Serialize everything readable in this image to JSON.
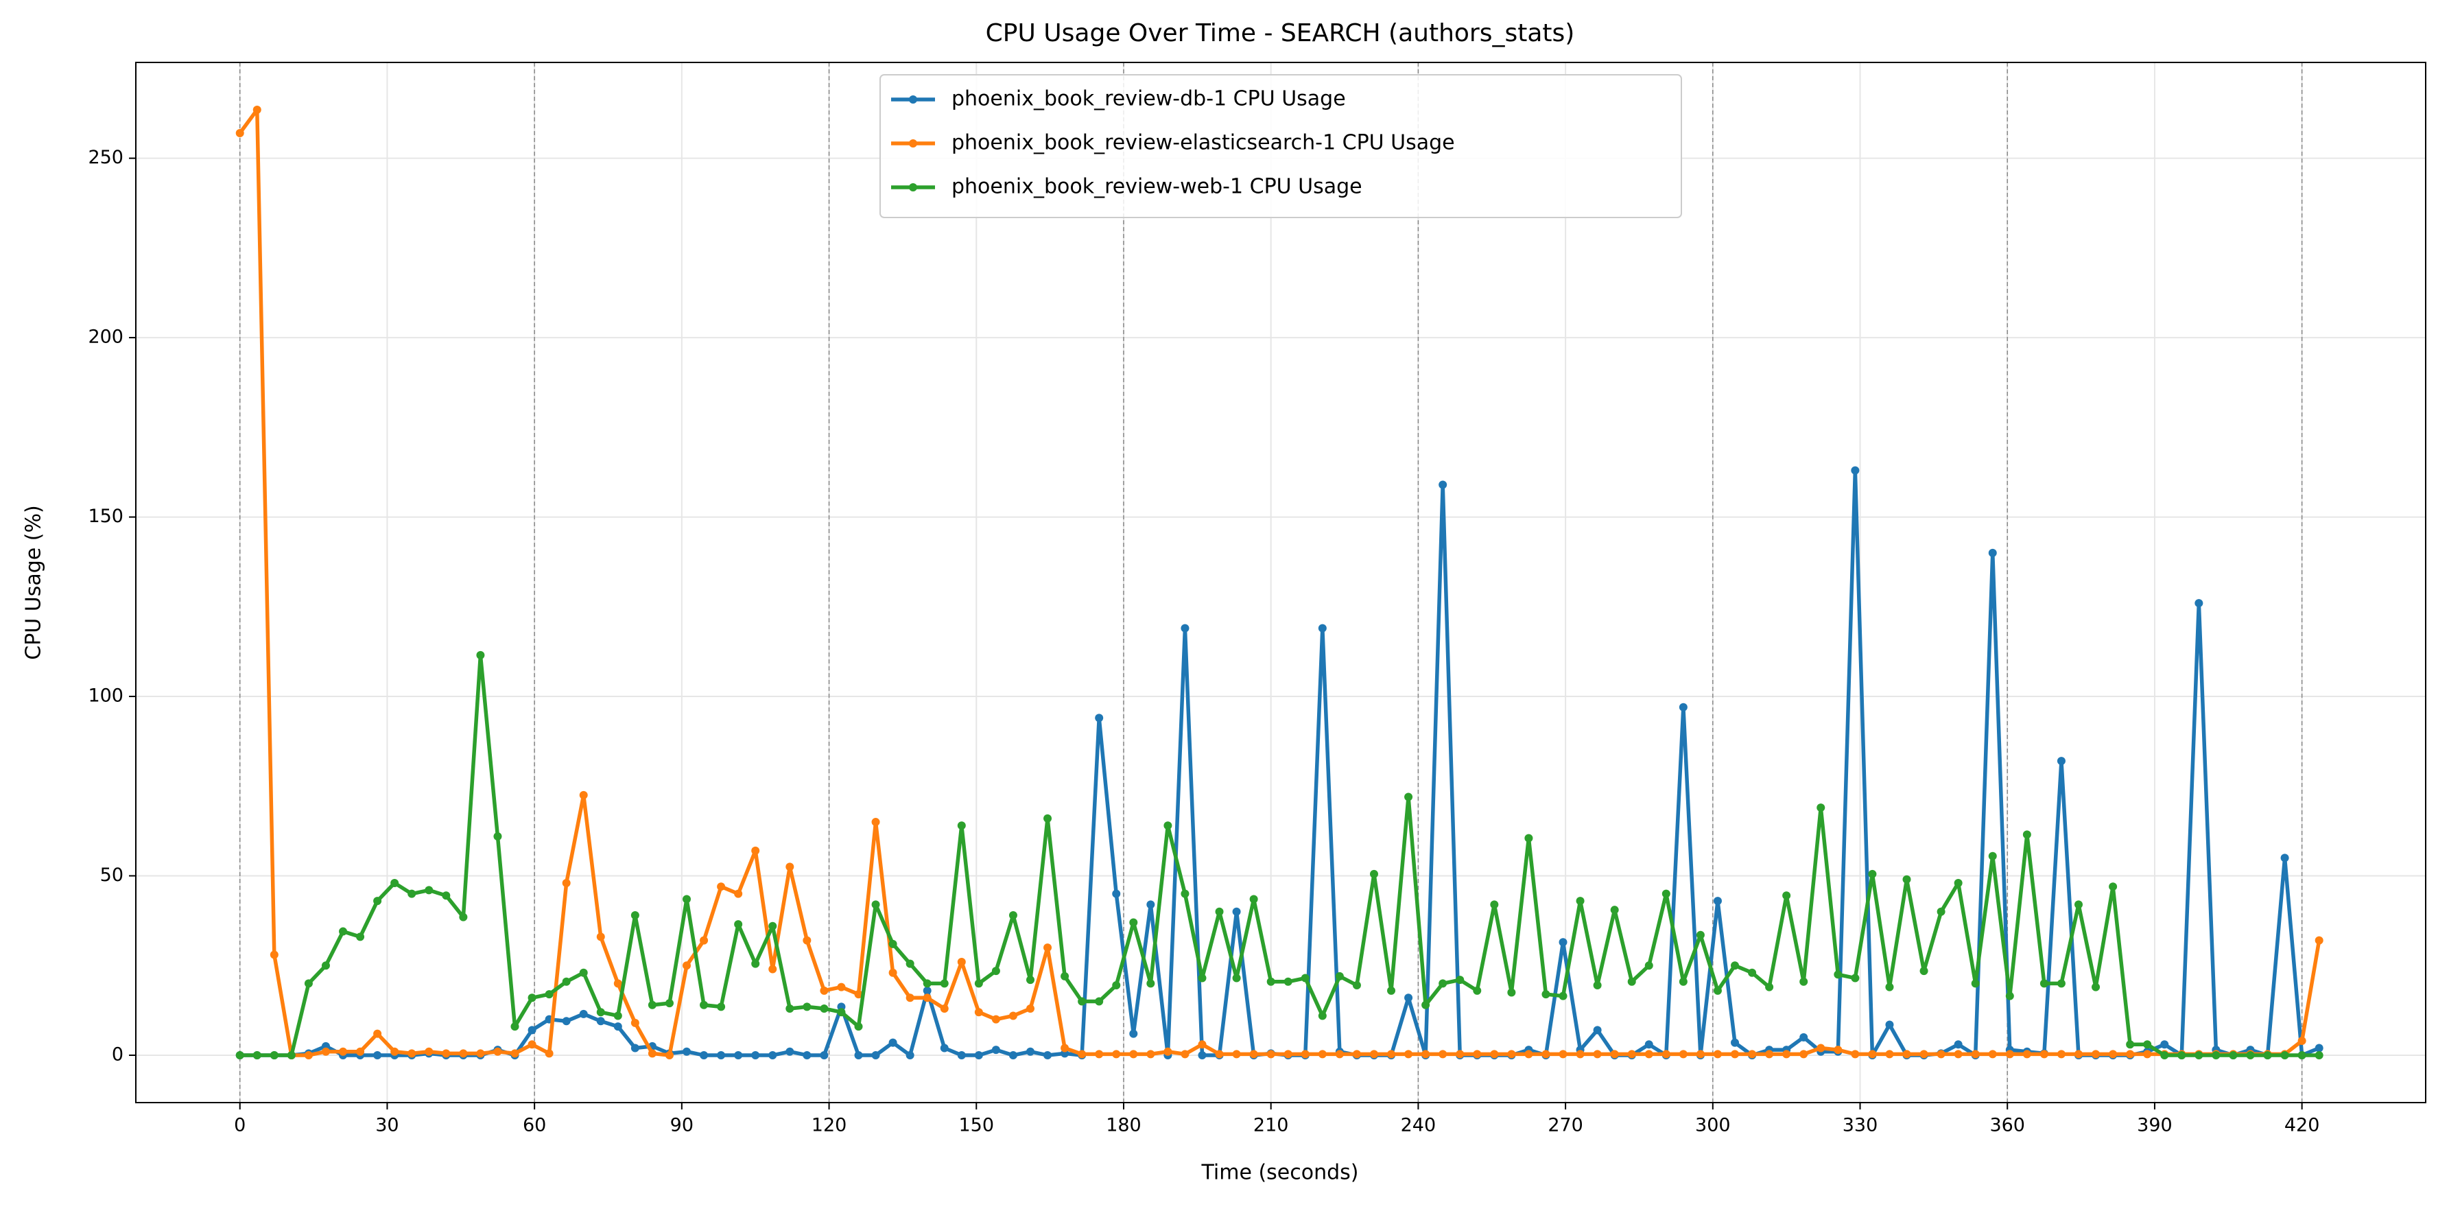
{
  "chart_data": {
    "type": "line",
    "title": "CPU Usage Over Time - SEARCH (authors_stats)",
    "x_label": "Time (seconds)",
    "y_label": "CPU Usage (%)",
    "x": [
      0,
      3.5,
      7,
      10.5,
      14,
      17.5,
      21,
      24.5,
      28,
      31.5,
      35,
      38.5,
      42,
      45.5,
      49,
      52.5,
      56,
      59.5,
      63,
      66.5,
      70,
      73.5,
      77,
      80.5,
      84,
      87.5,
      91,
      94.5,
      98,
      101.5,
      105,
      108.5,
      112,
      115.5,
      119,
      122.5,
      126,
      129.5,
      133,
      136.5,
      140,
      143.5,
      147,
      150.5,
      154,
      157.5,
      161,
      164.5,
      168,
      171.5,
      175,
      178.5,
      182,
      185.5,
      189,
      192.5,
      196,
      199.5,
      203,
      206.5,
      210,
      213.5,
      217,
      220.5,
      224,
      227.5,
      231,
      234.5,
      238,
      241.5,
      245,
      248.5,
      252,
      255.5,
      259,
      262.5,
      266,
      269.5,
      273,
      276.5,
      280,
      283.5,
      287,
      290.5,
      294,
      297.5,
      301,
      304.5,
      308,
      311.5,
      315,
      318.5,
      322,
      325.5,
      329,
      332.5,
      336,
      339.5,
      343,
      346.5,
      350,
      353.5,
      357,
      360.5,
      364,
      367.5,
      371,
      374.5,
      378,
      381.5,
      385,
      388.5,
      392,
      395.5,
      399,
      402.5,
      406,
      409.5,
      413,
      416.5,
      420,
      423.5
    ],
    "series": [
      {
        "name": "phoenix_book_review-db-1 CPU Usage",
        "color": "#1f77b4",
        "values": [
          0,
          0,
          0,
          0,
          0.5,
          2.5,
          0,
          0,
          0,
          0,
          0,
          0.5,
          0,
          0,
          0,
          1.5,
          0,
          7,
          10,
          9.5,
          11.5,
          9.5,
          8,
          2,
          2.5,
          0.5,
          1,
          0,
          0,
          0,
          0,
          0,
          1,
          0,
          0,
          13.5,
          0,
          0,
          3.5,
          0,
          18,
          2,
          0,
          0,
          1.5,
          0,
          1,
          0,
          0.5,
          0,
          94,
          45,
          6,
          42,
          0,
          119,
          0,
          0,
          40,
          0,
          0.5,
          0,
          0,
          119,
          1,
          0,
          0,
          0,
          16,
          0,
          159,
          0,
          0,
          0,
          0,
          1.5,
          0,
          31.5,
          1.5,
          7,
          0,
          0,
          3,
          0,
          97,
          0,
          43,
          3.5,
          0,
          1.5,
          1.5,
          5,
          1,
          1,
          163,
          0,
          8.5,
          0,
          0,
          0.5,
          3,
          0,
          140,
          1.5,
          1,
          0.5,
          82,
          0,
          0,
          0,
          0,
          1,
          3,
          0,
          126,
          1.5,
          0,
          1.5,
          0,
          55,
          0,
          2
        ]
      },
      {
        "name": "phoenix_book_review-elasticsearch-1 CPU Usage",
        "color": "#ff7f0e",
        "values": [
          257,
          263.5,
          28,
          0,
          0,
          1,
          1,
          1,
          6,
          1,
          0.5,
          1,
          0.5,
          0.5,
          0.5,
          1,
          0.5,
          3,
          0.5,
          48,
          72.5,
          33,
          20,
          9,
          0.5,
          0,
          25,
          32,
          47,
          45,
          57,
          24,
          52.5,
          32,
          18,
          19,
          17,
          65,
          23,
          16,
          16,
          13,
          26,
          12,
          10,
          11,
          13,
          30,
          2,
          0.3,
          0.3,
          0.3,
          0.3,
          0.3,
          1,
          0.3,
          3,
          0.3,
          0.3,
          0.3,
          0.3,
          0.3,
          0.3,
          0.3,
          0.3,
          0.3,
          0.3,
          0.3,
          0.3,
          0.3,
          0.3,
          0.3,
          0.3,
          0.3,
          0.3,
          0.3,
          0.3,
          0.3,
          0.3,
          0.3,
          0.3,
          0.3,
          0.3,
          0.3,
          0.3,
          0.3,
          0.3,
          0.3,
          0.3,
          0.3,
          0.3,
          0.3,
          2,
          1.5,
          0.3,
          0.3,
          0.3,
          0.3,
          0.3,
          0.3,
          0.3,
          0.3,
          0.3,
          0.3,
          0.3,
          0.3,
          0.3,
          0.3,
          0.3,
          0.3,
          0.3,
          0.3,
          0.3,
          0.3,
          0.3,
          0.3,
          0.3,
          0.3,
          0.3,
          0.3,
          4,
          32
        ]
      },
      {
        "name": "phoenix_book_review-web-1 CPU Usage",
        "color": "#2ca02c",
        "values": [
          0,
          0,
          0,
          0,
          20,
          25,
          34.5,
          33,
          43,
          48,
          45,
          46,
          44.5,
          38.5,
          111.5,
          61,
          8,
          16,
          17,
          20.5,
          23,
          12,
          11,
          39,
          14,
          14.5,
          43.5,
          14,
          13.5,
          36.5,
          25.5,
          36,
          13,
          13.5,
          13,
          12,
          8,
          42,
          31,
          25.5,
          20,
          20,
          64,
          20,
          23.5,
          39,
          21,
          66,
          22,
          15,
          15,
          19.5,
          37,
          20,
          64,
          45,
          21.5,
          40,
          21.5,
          43.5,
          20.5,
          20.5,
          21.5,
          11,
          22,
          19.5,
          50.5,
          18,
          72,
          14,
          20,
          21,
          18,
          42,
          17.5,
          60.5,
          17,
          16.5,
          43,
          19.5,
          40.5,
          20.5,
          25,
          45,
          20.5,
          33.5,
          18,
          25,
          23,
          19,
          44.5,
          20.5,
          69,
          22.5,
          21.5,
          50.5,
          19,
          49,
          23.5,
          40,
          48,
          20,
          55.5,
          16.5,
          61.5,
          20,
          20,
          42,
          19,
          47,
          3,
          3,
          0,
          0,
          0,
          0,
          0,
          0,
          0,
          0,
          0,
          0
        ]
      }
    ],
    "xlim": [
      -21.2,
      445.2
    ],
    "ylim": [
      -13.2,
      276.7
    ],
    "xticks": [
      0,
      30,
      60,
      90,
      120,
      150,
      180,
      210,
      240,
      270,
      300,
      330,
      360,
      390,
      420
    ],
    "yticks": [
      0,
      50,
      100,
      150,
      200,
      250
    ],
    "vlines": [
      0,
      60,
      120,
      180,
      240,
      300,
      360,
      420
    ],
    "grid": true,
    "legend": "upper center"
  }
}
